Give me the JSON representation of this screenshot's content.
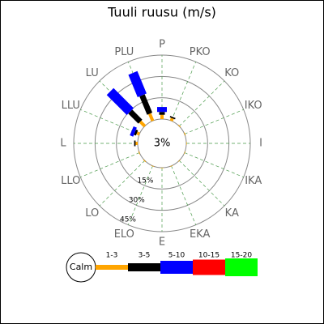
{
  "chart_data": {
    "type": "wind_rose",
    "title": "Tuuli ruusu (m/s)",
    "directions": [
      "P",
      "PKO",
      "KO",
      "IKO",
      "I",
      "IKA",
      "KA",
      "EKA",
      "E",
      "ELO",
      "LO",
      "LLO",
      "L",
      "LLU",
      "LU",
      "PLU"
    ],
    "calm_name": "Calm",
    "calm": 3,
    "calm_label": "3%",
    "rlim": [
      0,
      45
    ],
    "rticks": [
      {
        "value": 15,
        "label": "15%"
      },
      {
        "value": 30,
        "label": "30%"
      },
      {
        "value": 45,
        "label": "45%"
      }
    ],
    "grid": true,
    "series": [
      {
        "name": "1-3",
        "color": "#ffa500",
        "values": [
          3,
          2,
          0.5,
          0.5,
          0.3,
          0.3,
          0.3,
          0.3,
          0.3,
          0.3,
          0.5,
          0.5,
          1.5,
          2,
          4.5,
          5.5
        ]
      },
      {
        "name": "3-5",
        "color": "#000000",
        "values": [
          2,
          1,
          0,
          0,
          0,
          0,
          0,
          0,
          0,
          0,
          0,
          0,
          1,
          1.5,
          10,
          14
        ]
      },
      {
        "name": "5-10",
        "color": "#0000ff",
        "values": [
          3.5,
          0,
          0,
          0,
          0,
          0,
          0,
          0,
          0,
          0,
          0,
          0,
          0,
          2.5,
          20,
          17
        ]
      },
      {
        "name": "10-15",
        "color": "#ff0000",
        "values": [
          0,
          0,
          0,
          0,
          0,
          0,
          0,
          0,
          0,
          0,
          0,
          0,
          0,
          0,
          0,
          0
        ]
      },
      {
        "name": "15-20",
        "color": "#00ff00",
        "values": [
          0,
          0,
          0,
          0,
          0,
          0,
          0,
          0,
          0,
          0,
          0,
          0,
          0,
          0,
          0,
          0
        ]
      }
    ]
  }
}
